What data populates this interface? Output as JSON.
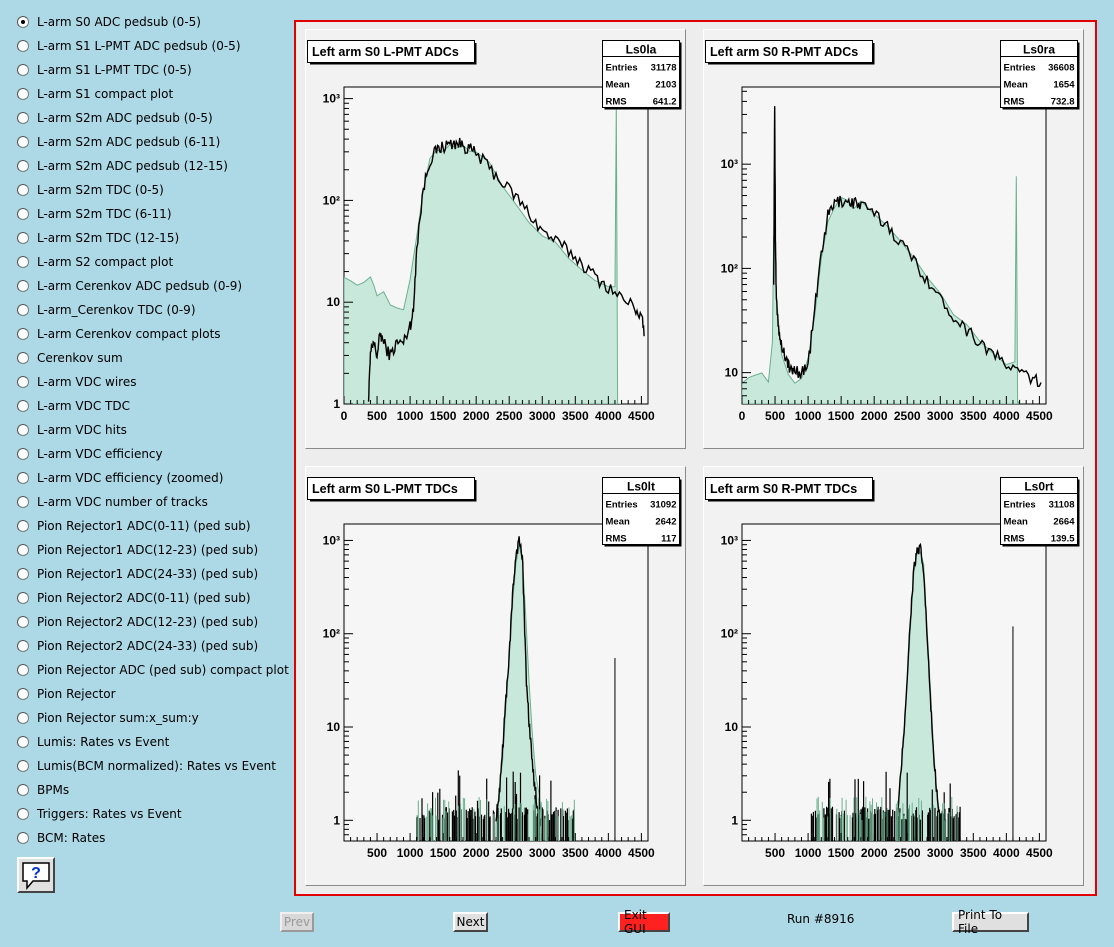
{
  "menu": {
    "selected_index": 0,
    "items": [
      "L-arm S0 ADC pedsub (0-5)",
      "L-arm S1 L-PMT ADC pedsub (0-5)",
      "L-arm S1 L-PMT TDC (0-5)",
      "L-arm S1 compact plot",
      "L-arm S2m ADC pedsub (0-5)",
      "L-arm S2m ADC pedsub (6-11)",
      "L-arm S2m ADC pedsub (12-15)",
      "L-arm S2m TDC (0-5)",
      "L-arm S2m TDC (6-11)",
      "L-arm S2m TDC (12-15)",
      "L-arm S2 compact plot",
      "L-arm Cerenkov ADC pedsub (0-9)",
      "L-arm_Cerenkov TDC (0-9)",
      "L-arm Cerenkov compact plots",
      "Cerenkov sum",
      "L-arm VDC wires",
      "L-arm VDC TDC",
      "L-arm VDC hits",
      "L-arm VDC efficiency",
      "L-arm VDC efficiency (zoomed)",
      "L-arm VDC number of tracks",
      "Pion Rejector1 ADC(0-11) (ped sub)",
      "Pion Rejector1 ADC(12-23) (ped sub)",
      "Pion Rejector1 ADC(24-33) (ped sub)",
      "Pion Rejector2 ADC(0-11) (ped sub)",
      "Pion Rejector2 ADC(12-23) (ped sub)",
      "Pion Rejector2 ADC(24-33) (ped sub)",
      "Pion Rejector ADC (ped sub) compact plot",
      "Pion Rejector",
      "Pion Rejector sum:x_sum:y",
      "Lumis: Rates vs Event",
      "Lumis(BCM normalized): Rates vs Event",
      "BPMs",
      "Triggers: Rates vs Event",
      "BCM: Rates"
    ]
  },
  "help": {
    "icon": "help-icon",
    "glyph": "?"
  },
  "buttons": {
    "prev": "Prev",
    "next": "Next",
    "exit": "Exit GUI",
    "print": "Print To File",
    "exit_color": "#ff2020"
  },
  "run_label": "Run #8916",
  "colors": {
    "background": "#add8e6",
    "canvas_border": "#e00000",
    "hist_fill": "#c8e8dc",
    "hist_reference": "#6ab08e",
    "hist_current": "#000000"
  },
  "chart_data": [
    {
      "type": "area",
      "title": "Left arm S0 L-PMT ADCs",
      "stats": {
        "name": "Ls0la",
        "rows": [
          [
            "Entries",
            "31178"
          ],
          [
            "Mean",
            "2103"
          ],
          [
            "RMS",
            "641.2"
          ]
        ]
      },
      "xlim": [
        0,
        4600
      ],
      "ylim": [
        1,
        1300
      ],
      "log_y": true,
      "xticks": [
        0,
        500,
        1000,
        1500,
        2000,
        2500,
        3000,
        3500,
        4000,
        4500
      ],
      "yticks": [
        1,
        10,
        100,
        1000
      ],
      "ytick_labels": [
        "1",
        "10",
        "10²",
        "10³"
      ],
      "series": [
        {
          "style": "reference-fill",
          "x": [
            0,
            100,
            200,
            300,
            400,
            450,
            500,
            600,
            700,
            800,
            900,
            1000,
            1100,
            1200,
            1300,
            1400,
            1500,
            1600,
            1700,
            1800,
            1900,
            2000,
            2200,
            2400,
            2600,
            2800,
            3000,
            3200,
            3400,
            3600,
            3800,
            4000,
            4100,
            4120,
            4140,
            4200
          ],
          "y": [
            20,
            17,
            15,
            14,
            18,
            16,
            13,
            12,
            10,
            9,
            9,
            15,
            45,
            120,
            230,
            300,
            330,
            350,
            360,
            350,
            330,
            300,
            220,
            150,
            100,
            65,
            45,
            35,
            28,
            22,
            17,
            14,
            13,
            900,
            1,
            1
          ]
        },
        {
          "style": "current-line",
          "x": [
            370,
            400,
            450,
            500,
            550,
            600,
            700,
            800,
            900,
            1000,
            1050,
            1100,
            1200,
            1300,
            1400,
            1500,
            1600,
            1700,
            1800,
            1900,
            2000,
            2200,
            2400,
            2600,
            2800,
            3000,
            3200,
            3400,
            3600,
            3800,
            4000,
            4200,
            4400,
            4500,
            4550
          ],
          "y": [
            1,
            3,
            4,
            3,
            5,
            4,
            3,
            4,
            4,
            6,
            8,
            35,
            130,
            250,
            310,
            340,
            360,
            370,
            350,
            320,
            290,
            210,
            150,
            110,
            75,
            50,
            40,
            32,
            24,
            18,
            14,
            11,
            9,
            7,
            5
          ]
        }
      ]
    },
    {
      "type": "area",
      "title": "Left arm S0 R-PMT ADCs",
      "stats": {
        "name": "Ls0ra",
        "rows": [
          [
            "Entries",
            "36608"
          ],
          [
            "Mean",
            "1654"
          ],
          [
            "RMS",
            "732.8"
          ]
        ]
      },
      "xlim": [
        0,
        4600
      ],
      "ylim": [
        5,
        5500
      ],
      "log_y": true,
      "xticks": [
        0,
        500,
        1000,
        1500,
        2000,
        2500,
        3000,
        3500,
        4000,
        4500
      ],
      "yticks": [
        10,
        100,
        1000
      ],
      "ytick_labels": [
        "10",
        "10²",
        "10³"
      ],
      "series": [
        {
          "style": "reference-fill",
          "x": [
            0,
            100,
            200,
            300,
            400,
            460,
            480,
            500,
            520,
            560,
            600,
            700,
            800,
            900,
            1000,
            1100,
            1200,
            1300,
            1400,
            1500,
            1600,
            1700,
            1800,
            2000,
            2200,
            2400,
            2600,
            2800,
            3000,
            3200,
            3400,
            3600,
            3800,
            4000,
            4130,
            4150,
            4170,
            4200
          ],
          "y": [
            9,
            10,
            9,
            10,
            9,
            20,
            200,
            150,
            60,
            30,
            15,
            10,
            9,
            10,
            15,
            40,
            130,
            300,
            400,
            430,
            430,
            420,
            400,
            340,
            270,
            190,
            130,
            85,
            55,
            38,
            28,
            20,
            16,
            13,
            12,
            700,
            5,
            5
          ]
        },
        {
          "style": "current-line",
          "x": [
            480,
            495,
            505,
            520,
            560,
            600,
            650,
            700,
            750,
            800,
            900,
            1000,
            1100,
            1200,
            1300,
            1400,
            1500,
            1600,
            1700,
            1800,
            2000,
            2200,
            2400,
            2600,
            2800,
            3000,
            3200,
            3400,
            3600,
            3800,
            4000,
            4200,
            4400,
            4550
          ],
          "y": [
            80,
            4000,
            200,
            50,
            25,
            18,
            15,
            12,
            10,
            11,
            10,
            12,
            40,
            140,
            320,
            420,
            450,
            440,
            430,
            400,
            330,
            260,
            180,
            120,
            80,
            50,
            36,
            26,
            20,
            15,
            12,
            10,
            9,
            7
          ]
        }
      ]
    },
    {
      "type": "area",
      "title": "Left arm S0 L-PMT TDCs",
      "stats": {
        "name": "Ls0lt",
        "rows": [
          [
            "Entries",
            "31092"
          ],
          [
            "Mean",
            "2642"
          ],
          [
            "RMS",
            "117"
          ]
        ]
      },
      "xlim": [
        0,
        4600
      ],
      "ylim": [
        0.6,
        1500
      ],
      "log_y": true,
      "xticks": [
        500,
        1000,
        1500,
        2000,
        2500,
        3000,
        3500,
        4000,
        4500
      ],
      "yticks": [
        1,
        10,
        100,
        1000
      ],
      "ytick_labels": [
        "1",
        "10",
        "10²",
        "10³"
      ],
      "series": [
        {
          "style": "reference-fill",
          "x": [
            2300,
            2350,
            2400,
            2450,
            2500,
            2550,
            2600,
            2650,
            2700,
            2750,
            2800,
            2850,
            2900,
            2950,
            3000
          ],
          "y": [
            1,
            2,
            5,
            15,
            50,
            200,
            600,
            900,
            700,
            150,
            30,
            8,
            3,
            2,
            1
          ]
        },
        {
          "style": "current-line",
          "x": [
            2300,
            2350,
            2400,
            2450,
            2500,
            2550,
            2600,
            2650,
            2700,
            2730,
            2760,
            2800,
            2850,
            2900,
            2950,
            3000
          ],
          "y": [
            1,
            2,
            6,
            20,
            60,
            250,
            700,
            1000,
            650,
            150,
            30,
            12,
            4,
            2,
            1,
            1
          ]
        },
        {
          "style": "noise",
          "x_range": [
            1100,
            3500
          ],
          "y": 1.0
        },
        {
          "style": "spike",
          "x": [
            4100
          ],
          "y": [
            55
          ]
        }
      ]
    },
    {
      "type": "area",
      "title": "Left arm S0 R-PMT TDCs",
      "stats": {
        "name": "Ls0rt",
        "rows": [
          [
            "Entries",
            "31108"
          ],
          [
            "Mean",
            "2664"
          ],
          [
            "RMS",
            "139.5"
          ]
        ]
      },
      "xlim": [
        0,
        4600
      ],
      "ylim": [
        0.6,
        1500
      ],
      "log_y": true,
      "xticks": [
        500,
        1000,
        1500,
        2000,
        2500,
        3000,
        3500,
        4000,
        4500
      ],
      "yticks": [
        1,
        10,
        100,
        1000
      ],
      "ytick_labels": [
        "1",
        "10",
        "10²",
        "10³"
      ],
      "series": [
        {
          "style": "reference-fill",
          "x": [
            2350,
            2400,
            2450,
            2500,
            2550,
            2600,
            2650,
            2700,
            2750,
            2800,
            2850,
            2900,
            2950,
            3000
          ],
          "y": [
            1,
            3,
            8,
            30,
            120,
            400,
            700,
            800,
            500,
            120,
            25,
            6,
            2,
            1
          ]
        },
        {
          "style": "current-line",
          "x": [
            2350,
            2400,
            2450,
            2500,
            2550,
            2600,
            2650,
            2700,
            2750,
            2800,
            2850,
            2900,
            2950,
            3000
          ],
          "y": [
            1,
            3,
            9,
            35,
            150,
            500,
            750,
            800,
            450,
            100,
            20,
            5,
            2,
            1
          ]
        },
        {
          "style": "noise",
          "x_range": [
            1050,
            3300
          ],
          "y": 1.0
        },
        {
          "style": "spike",
          "x": [
            4100
          ],
          "y": [
            120
          ]
        }
      ]
    }
  ]
}
